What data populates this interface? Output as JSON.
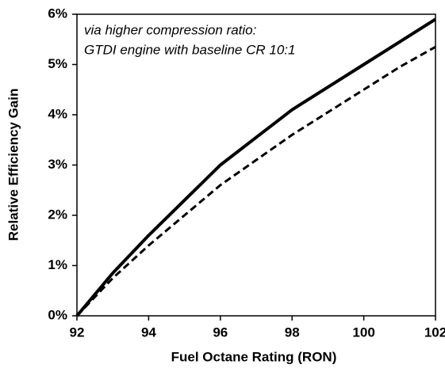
{
  "chart_data": {
    "type": "line",
    "xlabel": "Fuel Octane Rating (RON)",
    "ylabel": "Relative Efficiency Gain",
    "annotation": [
      "via higher compression ratio:",
      "GTDI engine with baseline CR 10:1"
    ],
    "x": [
      92,
      93,
      94,
      95,
      96,
      97,
      98,
      99,
      100,
      101,
      102
    ],
    "series": [
      {
        "color": "#000000",
        "style": "solid",
        "values": [
          0,
          0.85,
          1.6,
          2.3,
          3.0,
          3.55,
          4.1,
          4.55,
          5.0,
          5.45,
          5.9
        ]
      },
      {
        "color": "#000000",
        "style": "dashed",
        "values": [
          0,
          0.75,
          1.4,
          2.0,
          2.6,
          3.1,
          3.6,
          4.05,
          4.5,
          4.95,
          5.35
        ]
      }
    ],
    "xlim": [
      92,
      102
    ],
    "xticks": [
      92,
      94,
      96,
      98,
      100,
      102
    ],
    "ylim": [
      0,
      6
    ],
    "yticks": [
      {
        "value": 0,
        "label": "0%"
      },
      {
        "value": 1,
        "label": "1%"
      },
      {
        "value": 2,
        "label": "2%"
      },
      {
        "value": 3,
        "label": "3%"
      },
      {
        "value": 4,
        "label": "4%"
      },
      {
        "value": 5,
        "label": "5%"
      },
      {
        "value": 6,
        "label": "6%"
      }
    ],
    "grid": false
  }
}
